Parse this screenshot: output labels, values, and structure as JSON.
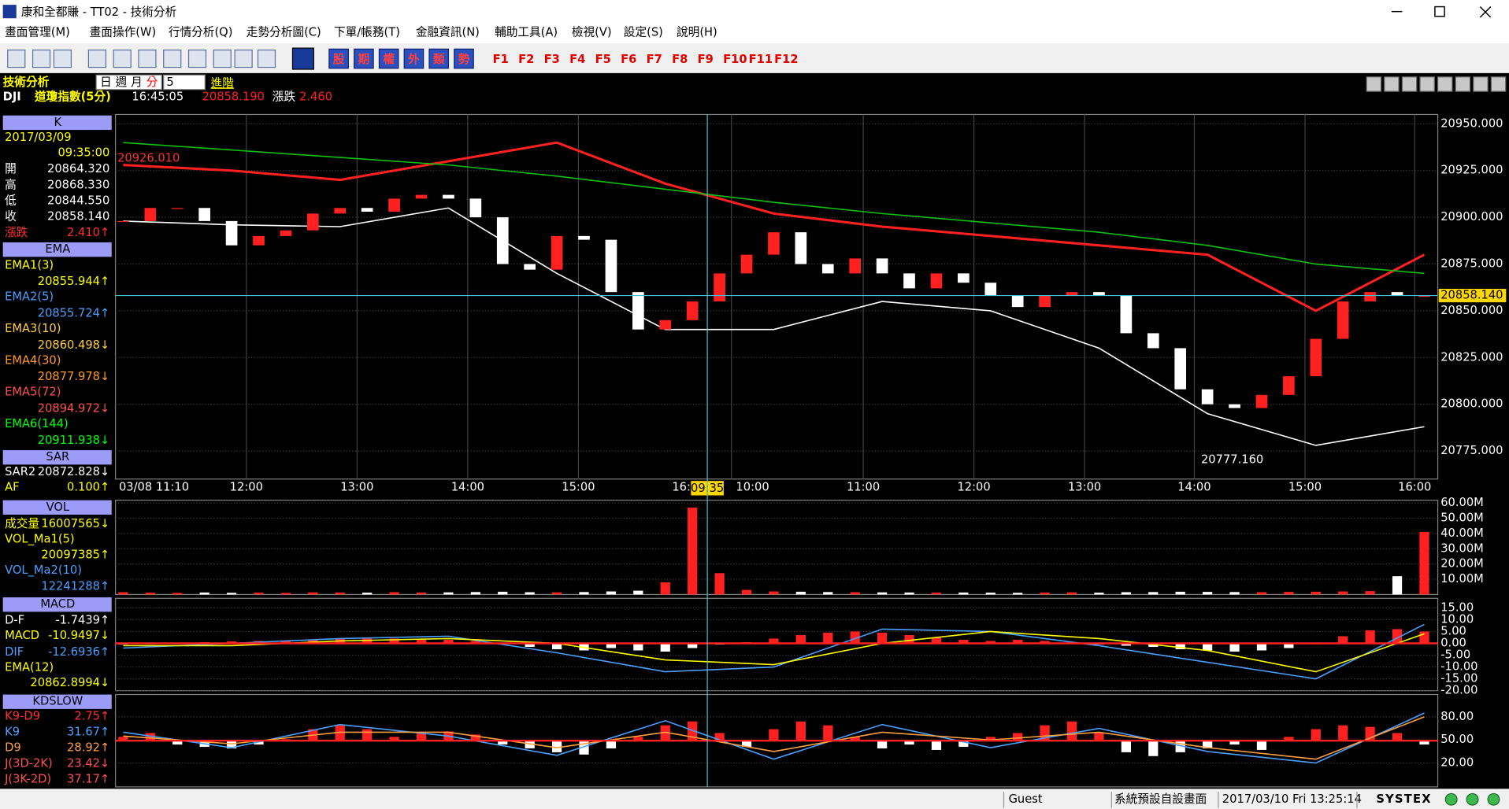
{
  "window": {
    "title": "康和全都賺 - TT02 - 技術分析"
  },
  "menu": [
    "畫面管理(M)",
    "畫面操作(W)",
    "行情分析(Q)",
    "走勢分析圖(C)",
    "下單/帳務(T)",
    "金融資訊(N)",
    "輔助工具(A)",
    "檢視(V)",
    "設定(S)",
    "說明(H)"
  ],
  "toolbar": {
    "quote_buttons": [
      "股",
      "期",
      "權",
      "外",
      "類",
      "勢"
    ],
    "function_keys": [
      "F1",
      "F2",
      "F3",
      "F4",
      "F5",
      "F6",
      "F7",
      "F8",
      "F9",
      "F10",
      "F11",
      "F12"
    ]
  },
  "header": {
    "title": "技術分析",
    "periods": [
      "日",
      "週",
      "月",
      "分"
    ],
    "interval": "5",
    "advanced": "進階",
    "symbol": "DJI",
    "name": "道瓊指數(5分)",
    "time": "16:45:05",
    "price": "20858.190",
    "change_label": "漲跌",
    "change": "2.460"
  },
  "info_panel": {
    "k": {
      "title": "K",
      "date": "2017/03/09",
      "time": "09:35:00",
      "rows": [
        {
          "label": "開",
          "value": "20864.320",
          "color": "#ffffff"
        },
        {
          "label": "高",
          "value": "20868.330",
          "color": "#ffffff"
        },
        {
          "label": "低",
          "value": "20844.550",
          "color": "#ffffff"
        },
        {
          "label": "收",
          "value": "20858.140",
          "color": "#ffffff"
        },
        {
          "label": "漲跌",
          "value": "2.410↑",
          "color": "#ff3030"
        }
      ]
    },
    "ema": {
      "title": "EMA",
      "rows": [
        {
          "label": "EMA1(3)",
          "value": "20855.944↑",
          "color": "#ffff00"
        },
        {
          "label": "EMA2(5)",
          "value": "20855.724↑",
          "color": "#4aa0ff"
        },
        {
          "label": "EMA3(10)",
          "value": "20860.498↓",
          "color": "#ffd040"
        },
        {
          "label": "EMA4(30)",
          "value": "20877.978↓",
          "color": "#ff9a20"
        },
        {
          "label": "EMA5(72)",
          "value": "20894.972↓",
          "color": "#ff5050"
        },
        {
          "label": "EMA6(144)",
          "value": "20911.938↓",
          "color": "#00ff00"
        }
      ]
    },
    "sar": {
      "title": "SAR",
      "rows": [
        {
          "label": "SAR2",
          "value": "20872.828↓",
          "color": "#ffffff"
        },
        {
          "label": "AF",
          "value": "0.100↑",
          "color": "#ffff00"
        }
      ]
    },
    "vol": {
      "title": "VOL",
      "rows": [
        {
          "label": "成交量",
          "value": "16007565↓",
          "color": "#ffff00"
        },
        {
          "label": "VOL_Ma1(5)",
          "value": "20097385↑",
          "color": "#ffff00"
        },
        {
          "label": "VOL_Ma2(10)",
          "value": "12241288↑",
          "color": "#4aa0ff"
        }
      ]
    },
    "macd": {
      "title": "MACD",
      "rows": [
        {
          "label": "D-F",
          "value": "-1.7439↑",
          "color": "#ffffff"
        },
        {
          "label": "MACD",
          "value": "-10.9497↓",
          "color": "#ffff00"
        },
        {
          "label": "DIF",
          "value": "-12.6936↑",
          "color": "#4aa0ff"
        },
        {
          "label": "EMA(12)",
          "value": "20862.8994↓",
          "color": "#ffff00"
        }
      ]
    },
    "kd": {
      "title": "KDSLOW",
      "rows": [
        {
          "label": "K9-D9",
          "value": "2.75↑",
          "color": "#ff3030"
        },
        {
          "label": "K9",
          "value": "31.67↑",
          "color": "#4aa0ff"
        },
        {
          "label": "D9",
          "value": "28.92↑",
          "color": "#ffa040"
        },
        {
          "label": "J(3D-2K)",
          "value": "23.42↓",
          "color": "#ff5050"
        },
        {
          "label": "J(3K-2D)",
          "value": "37.17↑",
          "color": "#ff5050"
        }
      ]
    }
  },
  "price_chart": {
    "type": "candlestick",
    "ylim": [
      20760,
      20955
    ],
    "yticks": [
      {
        "value": 20950,
        "label": "20950.000"
      },
      {
        "value": 20925,
        "label": "20925.000"
      },
      {
        "value": 20900,
        "label": "20900.000"
      },
      {
        "value": 20875,
        "label": "20875.000"
      },
      {
        "value": 20850,
        "label": "20850.000"
      },
      {
        "value": 20825,
        "label": "20825.000"
      },
      {
        "value": 20800,
        "label": "20800.000"
      },
      {
        "value": 20775,
        "label": "20775.000"
      }
    ],
    "x_labels": [
      "03/08 11:10",
      "12:00",
      "13:00",
      "14:00",
      "15:00",
      "16:",
      "10:00",
      "11:00",
      "12:00",
      "13:00",
      "14:00",
      "15:00",
      "16:00"
    ],
    "cursor_time": "09:35",
    "high_label": "20926.010",
    "low_label": "20777.160",
    "last_price": {
      "value": 20858.14,
      "label": "20858.140"
    },
    "closes": [
      20898,
      20905,
      20905,
      20898,
      20885,
      20890,
      20893,
      20902,
      20905,
      20903,
      20910,
      20912,
      20910,
      20900,
      20875,
      20872,
      20890,
      20888,
      20860,
      20840,
      20845,
      20855,
      20870,
      20880,
      20892,
      20875,
      20870,
      20878,
      20870,
      20862,
      20870,
      20865,
      20858,
      20852,
      20858,
      20860,
      20858,
      20838,
      20830,
      20808,
      20800,
      20798,
      20805,
      20815,
      20835,
      20855,
      20860,
      20858,
      20858
    ],
    "up_color": "#ff2020",
    "down_color": "#ffffff",
    "lines": [
      {
        "color": "#ff2020",
        "values": [
          20928,
          20925,
          20920,
          20930,
          20940,
          20918,
          20902,
          20895,
          20890,
          20885,
          20880,
          20850,
          20880
        ]
      },
      {
        "color": "#10c010",
        "values": [
          20940,
          20936,
          20932,
          20928,
          20922,
          20915,
          20908,
          20902,
          20897,
          20892,
          20885,
          20875,
          20870
        ]
      },
      {
        "color": "#ffffff",
        "values": [
          20898,
          20896,
          20895,
          20905,
          20870,
          20840,
          20840,
          20855,
          20850,
          20830,
          20795,
          20778,
          20788
        ]
      }
    ]
  },
  "volume_chart": {
    "type": "bar",
    "ylim": [
      0,
      61800000
    ],
    "yticks": [
      {
        "value": 60000000,
        "label": "60.00M"
      },
      {
        "value": 50000000,
        "label": "50.00M"
      },
      {
        "value": 40000000,
        "label": "40.00M"
      },
      {
        "value": 30000000,
        "label": "30.00M"
      },
      {
        "value": 20000000,
        "label": "20.00M"
      },
      {
        "value": 10000000,
        "label": "10.00M"
      }
    ],
    "values": [
      1500000,
      1200000,
      1000000,
      1300000,
      1100000,
      1200000,
      1000000,
      1400000,
      1300000,
      1200000,
      1500000,
      1300000,
      1400000,
      1600000,
      1800000,
      1500000,
      1400000,
      1600000,
      2000000,
      2500000,
      8000000,
      57000000,
      14000000,
      3000000,
      2000000,
      1800000,
      1600000,
      1500000,
      1400000,
      1300000,
      1200000,
      1300000,
      1200000,
      1100000,
      1300000,
      1400000,
      1200000,
      1500000,
      1600000,
      1800000,
      1700000,
      1600000,
      1500000,
      1700000,
      1800000,
      2000000,
      2200000,
      12000000,
      41000000
    ]
  },
  "macd_chart": {
    "type": "bar",
    "ylim": [
      -20,
      19
    ],
    "yticks": [
      {
        "value": 15,
        "label": "15.00"
      },
      {
        "value": 10,
        "label": "10.00"
      },
      {
        "value": 5,
        "label": "5.00"
      },
      {
        "value": 0,
        "label": "0.00"
      },
      {
        "value": -5,
        "label": "-5.00"
      },
      {
        "value": -10,
        "label": "-10.00"
      },
      {
        "value": -15,
        "label": "-15.00"
      },
      {
        "value": -20,
        "label": "-20.00"
      }
    ],
    "values": [
      -0.5,
      -0.3,
      0.2,
      0.5,
      0.8,
      1,
      1.2,
      1.5,
      1.8,
      2,
      2,
      1.8,
      1.5,
      1,
      0,
      -1.5,
      -2.5,
      -3,
      -2,
      -3,
      -3.5,
      -2,
      -0.5,
      0.5,
      2,
      3.5,
      4.5,
      5,
      4.5,
      3.5,
      2.5,
      1.5,
      1,
      1.5,
      1,
      0.5,
      -0.5,
      -1,
      -1.5,
      -2.5,
      -3,
      -3.5,
      -3,
      -2,
      0,
      3,
      5.5,
      6,
      5
    ],
    "lines": [
      {
        "color": "#4aa0ff",
        "values": [
          -2,
          0,
          2,
          3,
          -4,
          -12,
          -10,
          6,
          5,
          -1,
          -8,
          -15,
          8
        ]
      },
      {
        "color": "#ffff00",
        "values": [
          -1,
          -1,
          1,
          2,
          0,
          -7,
          -9,
          0,
          5,
          2,
          -3,
          -12,
          4
        ]
      }
    ]
  },
  "kd_chart": {
    "type": "bar",
    "ylim": [
      -11,
      109
    ],
    "hist_ylim": [
      -60,
      60
    ],
    "yticks": [
      {
        "value": 80,
        "label": "80.00"
      },
      {
        "value": 50,
        "label": "50.00"
      },
      {
        "value": 20,
        "label": "20.00"
      }
    ],
    "values": [
      5,
      10,
      -5,
      -8,
      -10,
      -5,
      2,
      15,
      20,
      15,
      5,
      10,
      12,
      8,
      -5,
      -10,
      -15,
      -18,
      -10,
      5,
      20,
      25,
      10,
      -8,
      15,
      25,
      20,
      5,
      -10,
      -5,
      -12,
      -8,
      5,
      10,
      20,
      25,
      10,
      -15,
      -20,
      -15,
      -10,
      -5,
      -12,
      5,
      15,
      20,
      18,
      10,
      -5
    ],
    "lines": [
      {
        "color": "#4aa0ff",
        "values": [
          60,
          40,
          70,
          55,
          30,
          75,
          25,
          70,
          40,
          65,
          35,
          20,
          85
        ]
      },
      {
        "color": "#ffa040",
        "values": [
          55,
          45,
          60,
          60,
          40,
          60,
          35,
          60,
          50,
          60,
          40,
          25,
          80
        ]
      }
    ]
  },
  "status_bar": {
    "user": "Guest",
    "layout": "系統預設自設畫面",
    "datetime": "2017/03/10 Fri 13:25:14",
    "brand": "SYSTEX"
  }
}
